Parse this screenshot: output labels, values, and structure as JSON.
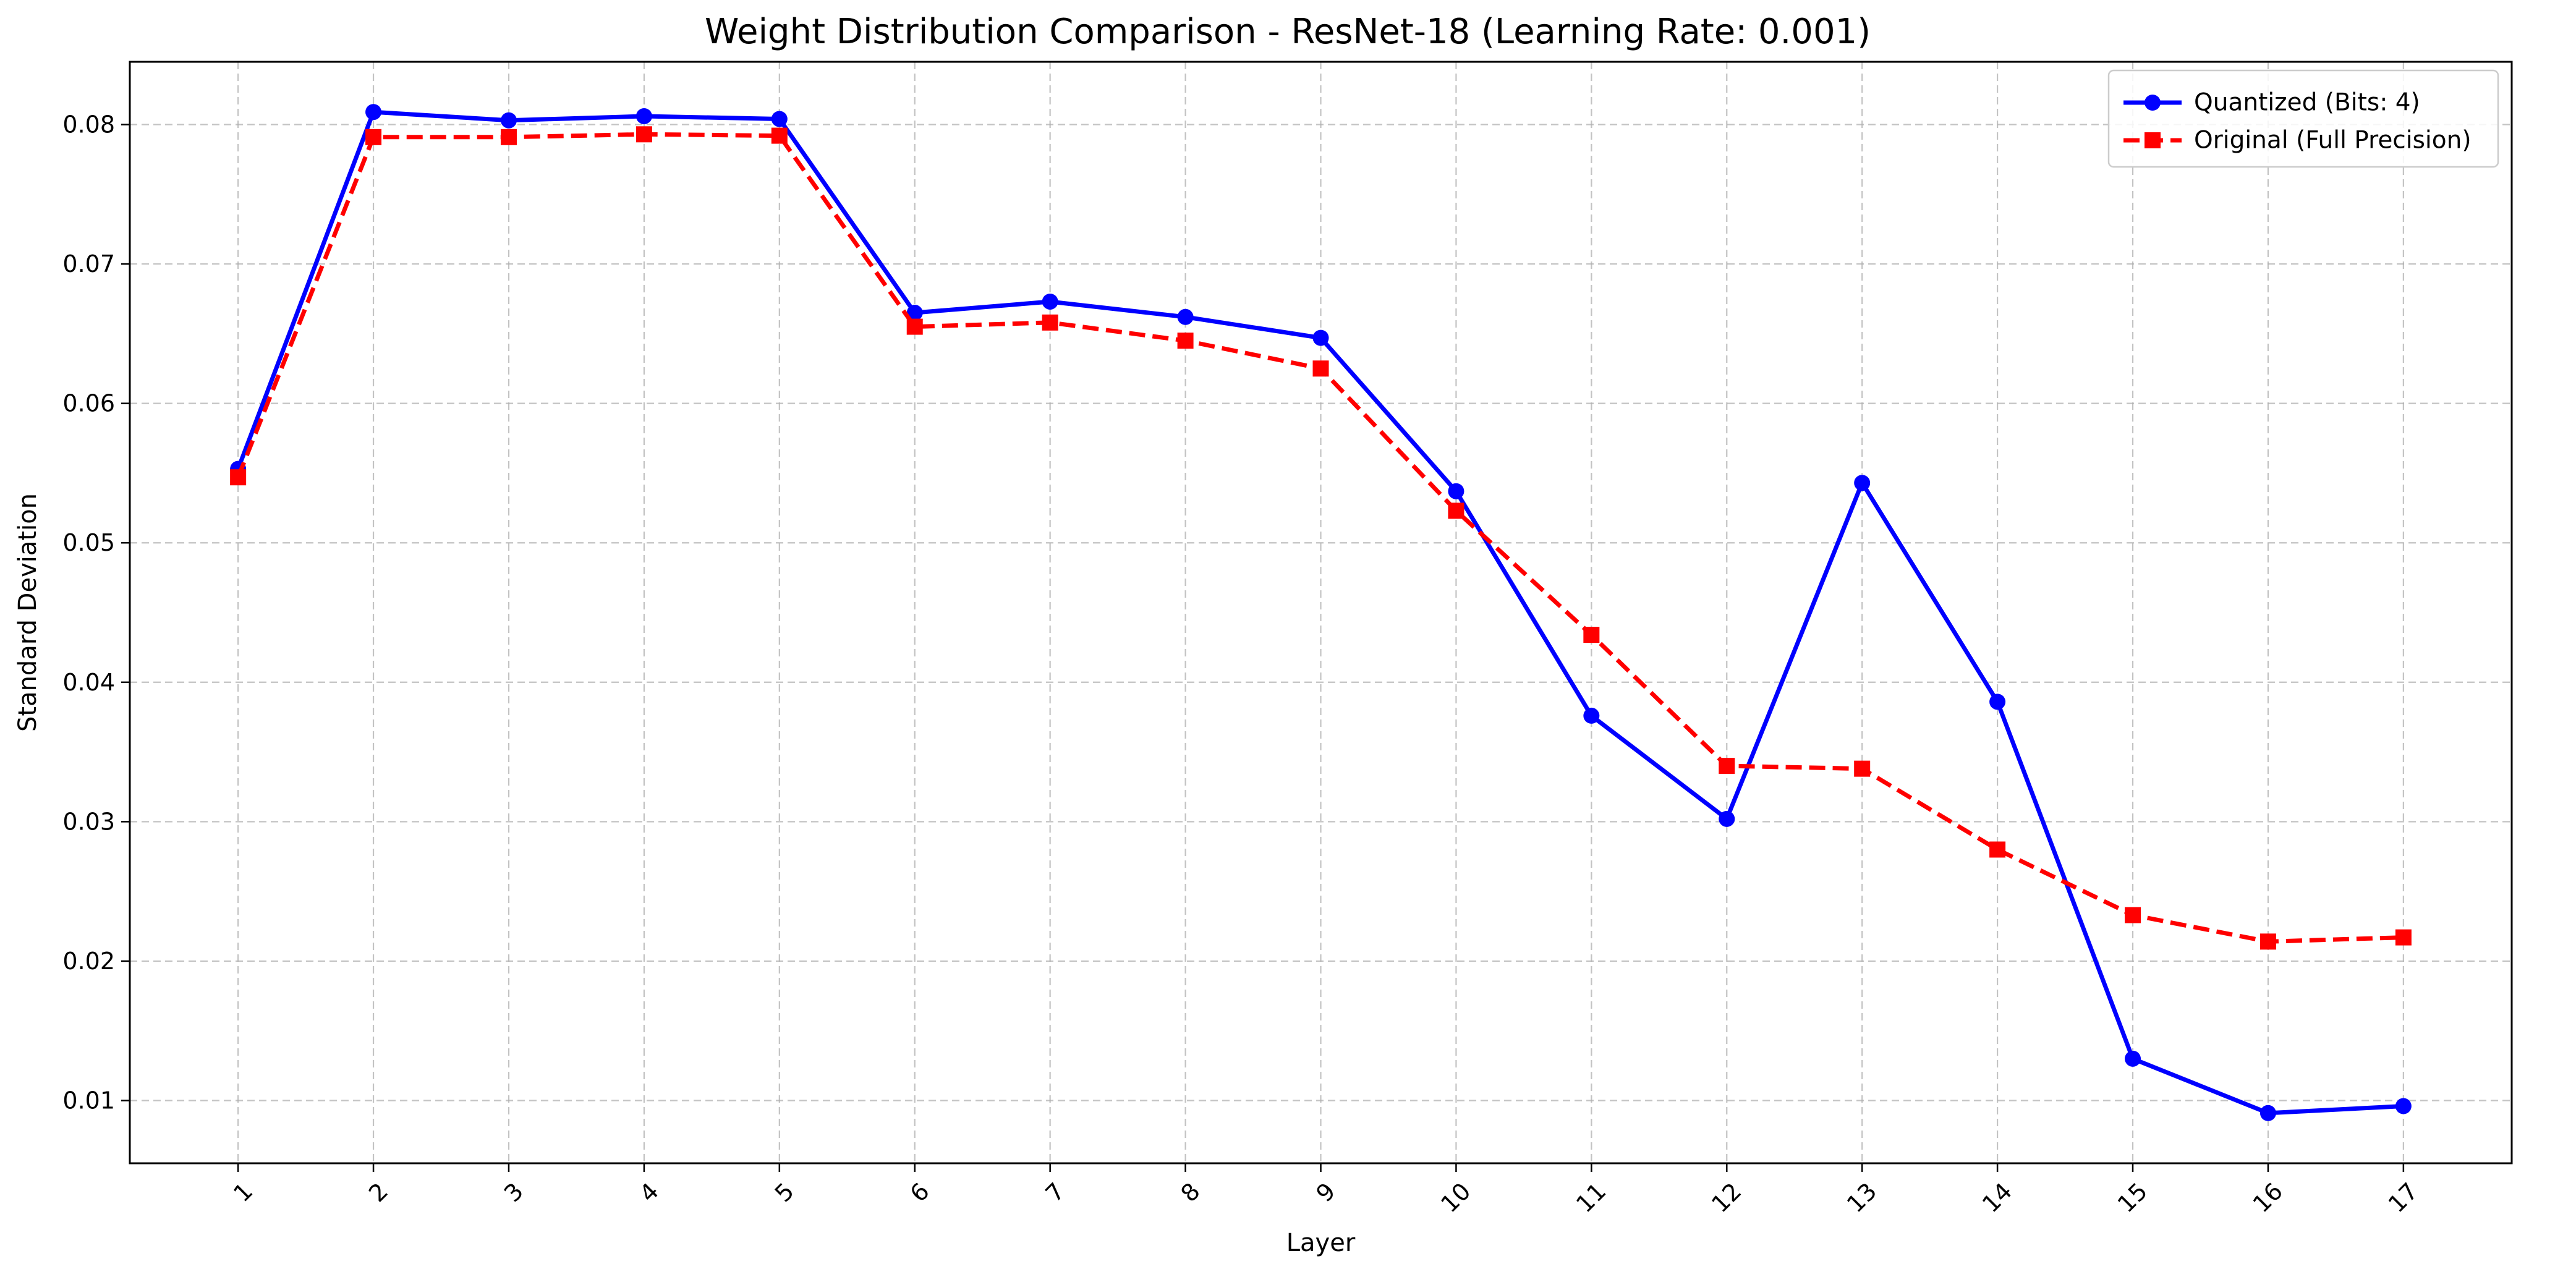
{
  "chart_data": {
    "type": "line",
    "title": "Weight Distribution Comparison - ResNet-18 (Learning Rate: 0.001)",
    "xlabel": "Layer",
    "ylabel": "Standard Deviation",
    "categories": [
      "1",
      "2",
      "3",
      "4",
      "5",
      "6",
      "7",
      "8",
      "9",
      "10",
      "11",
      "12",
      "13",
      "14",
      "15",
      "16",
      "17"
    ],
    "x": [
      1,
      2,
      3,
      4,
      5,
      6,
      7,
      8,
      9,
      10,
      11,
      12,
      13,
      14,
      15,
      16,
      17
    ],
    "xlim": [
      0.2,
      17.8
    ],
    "ylim": [
      0.0055,
      0.0845
    ],
    "yticks": [
      0.01,
      0.02,
      0.03,
      0.04,
      0.05,
      0.06,
      0.07,
      0.08
    ],
    "ytick_labels": [
      "0.01",
      "0.02",
      "0.03",
      "0.04",
      "0.05",
      "0.06",
      "0.07",
      "0.08"
    ],
    "grid": true,
    "legend_position": "top-right",
    "series": [
      {
        "name": "Quantized (Bits: 4)",
        "color": "#0000ff",
        "linestyle": "solid",
        "marker": "circle",
        "values": [
          0.0553,
          0.0809,
          0.0803,
          0.0806,
          0.0804,
          0.0665,
          0.0673,
          0.0662,
          0.0647,
          0.0537,
          0.0376,
          0.0302,
          0.0543,
          0.0386,
          0.013,
          0.0091,
          0.0096
        ]
      },
      {
        "name": "Original (Full Precision)",
        "color": "#ff0000",
        "linestyle": "dashed",
        "marker": "square",
        "values": [
          0.0547,
          0.0791,
          0.0791,
          0.0793,
          0.0792,
          0.0655,
          0.0658,
          0.0645,
          0.0625,
          0.0523,
          0.0434,
          0.034,
          0.0338,
          0.028,
          0.0233,
          0.0214,
          0.0217
        ]
      }
    ]
  }
}
